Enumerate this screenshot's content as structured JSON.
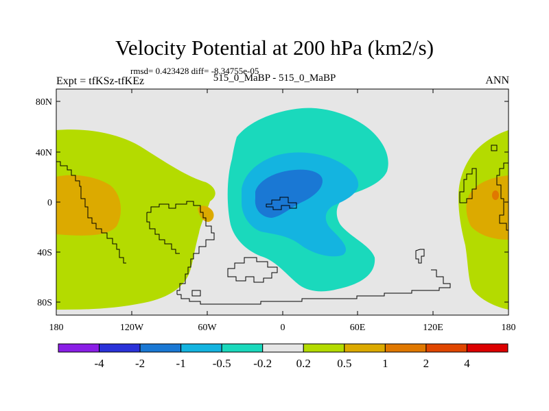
{
  "title": "Velocity Potential at 200 hPa (km2/s)",
  "stats": "rmsd= 0.423428 diff= -8.34755e-05",
  "expt": "Expt = tfKSz-tfKEz",
  "case": "515_0_MaBP - 515_0_MaBP",
  "season": "ANN",
  "lat_ticks": [
    "80N",
    "40N",
    "0",
    "40S",
    "80S"
  ],
  "lon_ticks": [
    "180",
    "120W",
    "60W",
    "0",
    "60E",
    "120E",
    "180"
  ],
  "colorbar": {
    "labels": [
      "-4",
      "-2",
      "-1",
      "-0.5",
      "-0.2",
      "0.2",
      "0.5",
      "1",
      "2",
      "4"
    ],
    "colors": [
      "#8a1ee6",
      "#2a32d9",
      "#1a78d4",
      "#14b4e0",
      "#1ad9bc",
      "#e6e6e6",
      "#b4db00",
      "#dcaa00",
      "#e07800",
      "#e04600",
      "#dc0000"
    ]
  },
  "fill_colors": {
    "background": "#e6e6e6",
    "positive_1": "#b4db00",
    "positive_2": "#dcaa00",
    "positive_3": "#e07800",
    "negative_1": "#1ad9bc",
    "negative_2": "#14b4e0",
    "negative_3": "#1a78d4"
  }
}
